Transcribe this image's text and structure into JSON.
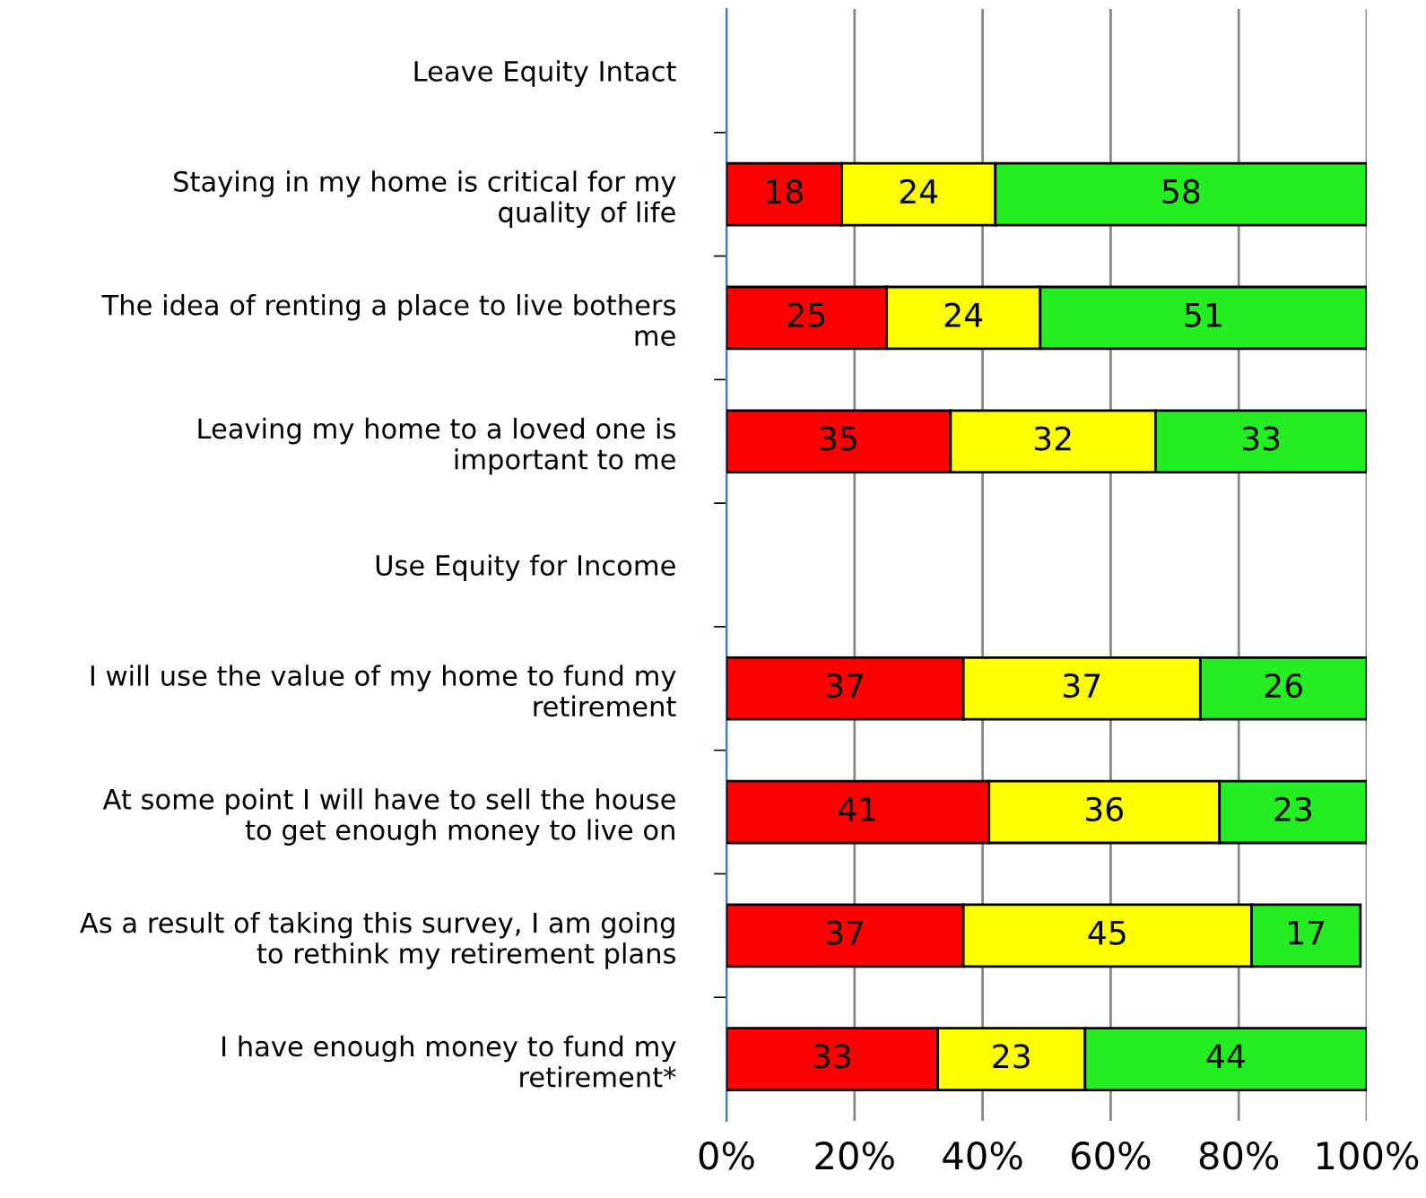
{
  "chart_data": {
    "type": "bar",
    "orientation": "horizontal",
    "stacked": true,
    "data_labels": true,
    "grid": "x",
    "legend": false,
    "categories": [
      "Leave Equity Intact",
      "Staying in my home is critical for my\nquality of life",
      "The idea of renting a place to live bothers\nme",
      "Leaving my home to a loved one is\nimportant to me",
      "Use Equity for Income",
      "I will use the value of my home to fund my\nretirement",
      "At some point I will have to sell the house\nto get enough money to live on",
      "As a result of taking this survey, I am going\nto rethink my retirement plans",
      "I have enough money to fund my\nretirement*"
    ],
    "series": [
      {
        "color": "#ff0000",
        "values": [
          null,
          18,
          25,
          35,
          null,
          37,
          41,
          37,
          33
        ]
      },
      {
        "color": "#ffff00",
        "values": [
          null,
          24,
          24,
          32,
          null,
          37,
          36,
          45,
          23
        ]
      },
      {
        "color": "#22ee22",
        "values": [
          null,
          58,
          51,
          33,
          null,
          26,
          23,
          17,
          44
        ]
      }
    ],
    "xlim": [
      0,
      100
    ],
    "xticks": [
      {
        "value": 0,
        "label": "0%"
      },
      {
        "value": 20,
        "label": "20%"
      },
      {
        "value": 40,
        "label": "40%"
      },
      {
        "value": 60,
        "label": "60%"
      },
      {
        "value": 80,
        "label": "80%"
      },
      {
        "value": 100,
        "label": "100%"
      }
    ]
  }
}
